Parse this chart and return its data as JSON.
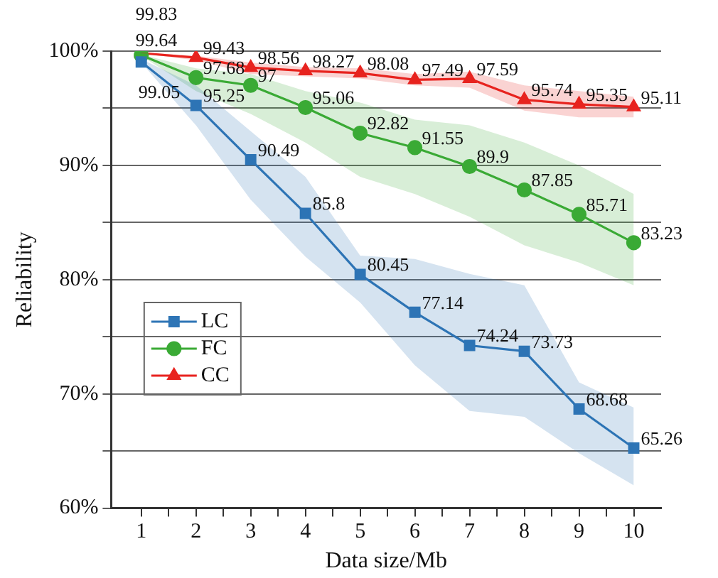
{
  "chart_data": {
    "type": "line",
    "xlabel": "Data size/Mb",
    "ylabel": "Reliability",
    "x": [
      1,
      2,
      3,
      4,
      5,
      6,
      7,
      8,
      9,
      10
    ],
    "xlim": [
      0.45,
      10.5
    ],
    "xticks": [
      1,
      {
        "value": 1.5,
        "label": null
      },
      2,
      {
        "value": 2.5,
        "label": null
      },
      3,
      {
        "value": 3.5,
        "label": null
      },
      4,
      {
        "value": 4.5,
        "label": null
      },
      5,
      {
        "value": 5.5,
        "label": null
      },
      6,
      {
        "value": 6.5,
        "label": null
      },
      7,
      {
        "value": 7.5,
        "label": null
      },
      8,
      {
        "value": 8.5,
        "label": null
      },
      9,
      {
        "value": 9.5,
        "label": null
      },
      10
    ],
    "ylim": [
      60,
      100
    ],
    "yticks": [
      {
        "value": 60,
        "label": "60%"
      },
      {
        "value": 65,
        "label": null
      },
      {
        "value": 70,
        "label": "70%"
      },
      {
        "value": 75,
        "label": null
      },
      {
        "value": 80,
        "label": "80%"
      },
      {
        "value": 85,
        "label": null
      },
      {
        "value": 90,
        "label": "90%"
      },
      {
        "value": 95,
        "label": null
      },
      {
        "value": 100,
        "label": "100%"
      }
    ],
    "grid": "y",
    "legend": "left",
    "data_labels": true,
    "line_style": "solid",
    "series": [
      {
        "name": "LC",
        "color": "#2e75b6",
        "marker": "square",
        "values": [
          99.05,
          95.25,
          90.49,
          85.8,
          80.45,
          77.14,
          74.24,
          73.73,
          68.68,
          65.26
        ],
        "upper": [
          99.3,
          97,
          93,
          89,
          82.1,
          81.8,
          80.5,
          79.5,
          71,
          68.8
        ],
        "lower": [
          99,
          93.5,
          87,
          82,
          78,
          72.5,
          68.5,
          68,
          64.8,
          62
        ]
      },
      {
        "name": "FC",
        "color": "#3aaa35",
        "marker": "circle",
        "values": [
          99.64,
          97.68,
          97,
          95.06,
          92.82,
          91.55,
          89.9,
          87.85,
          85.71,
          83.23
        ],
        "upper": [
          99.7,
          98.5,
          98,
          96.5,
          95.5,
          94,
          93.5,
          92,
          90,
          87.5
        ],
        "lower": [
          99.6,
          96.5,
          94.5,
          92,
          89,
          87.5,
          85.5,
          83,
          81.5,
          79.5
        ]
      },
      {
        "name": "CC",
        "color": "#e8231f",
        "marker": "triangle",
        "values": [
          99.83,
          99.43,
          98.56,
          98.27,
          98.08,
          97.49,
          97.59,
          95.74,
          95.35,
          95.11
        ],
        "upper": [
          99.9,
          99.6,
          99,
          98.6,
          98.5,
          98,
          98.2,
          97,
          96.5,
          96
        ],
        "lower": [
          99.8,
          99.2,
          98,
          97.8,
          97.6,
          97,
          96.8,
          94.8,
          94.2,
          94.2
        ]
      }
    ]
  }
}
